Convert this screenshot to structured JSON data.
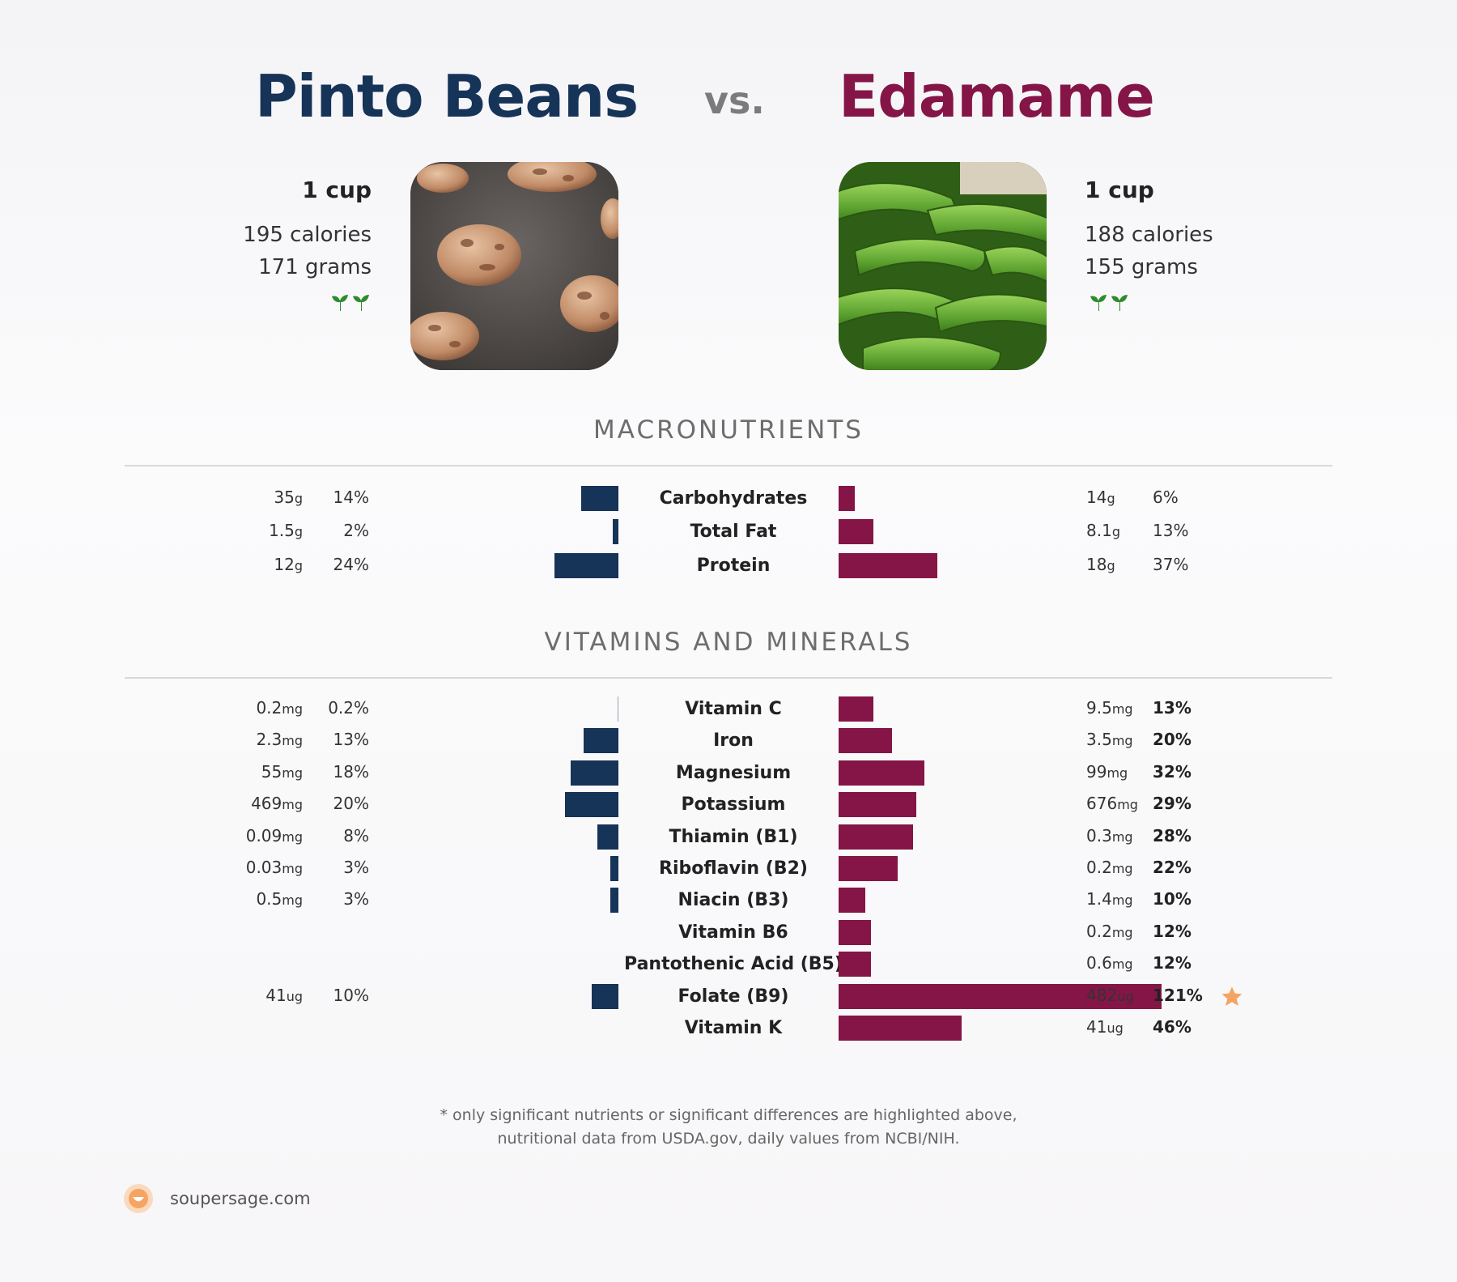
{
  "header": {
    "left_title": "Pinto Beans",
    "vs": "vs.",
    "right_title": "Edamame"
  },
  "foods": {
    "left": {
      "serving": "1 cup",
      "calories": "195 calories",
      "grams": "171 grams",
      "photo": "pinto-beans-photo",
      "badge": "plant-leaf-icon"
    },
    "right": {
      "serving": "1 cup",
      "calories": "188 calories",
      "grams": "155 grams",
      "photo": "edamame-photo",
      "badge": "plant-leaf-icon"
    }
  },
  "colors": {
    "left": "#163358",
    "right": "#851547",
    "star": "#f5a462",
    "leaf": "#2e8b2e"
  },
  "chart_data": [
    {
      "type": "bar",
      "title": "MACRONUTRIENTS",
      "categories": [
        "Carbohydrates",
        "Total Fat",
        "Protein"
      ],
      "series": [
        {
          "name": "Pinto Beans",
          "amounts": [
            "35",
            "1.5",
            "12"
          ],
          "units": [
            "g",
            "g",
            "g"
          ],
          "values": [
            14,
            2,
            24
          ],
          "labels": [
            "14%",
            "2%",
            "24%"
          ]
        },
        {
          "name": "Edamame",
          "amounts": [
            "14",
            "8.1",
            "18"
          ],
          "units": [
            "g",
            "g",
            "g"
          ],
          "values": [
            6,
            13,
            37
          ],
          "labels": [
            "6%",
            "13%",
            "37%"
          ]
        }
      ]
    },
    {
      "type": "bar",
      "title": "VITAMINS AND MINERALS",
      "categories": [
        "Vitamin C",
        "Iron",
        "Magnesium",
        "Potassium",
        "Thiamin (B1)",
        "Riboflavin (B2)",
        "Niacin (B3)",
        "Vitamin B6",
        "Pantothenic Acid (B5)",
        "Folate (B9)",
        "Vitamin K"
      ],
      "series": [
        {
          "name": "Pinto Beans",
          "amounts": [
            "0.2",
            "2.3",
            "55",
            "469",
            "0.09",
            "0.03",
            "0.5",
            null,
            null,
            "41",
            null
          ],
          "units": [
            "mg",
            "mg",
            "mg",
            "mg",
            "mg",
            "mg",
            "mg",
            null,
            null,
            "ug",
            null
          ],
          "values": [
            0.2,
            13,
            18,
            20,
            8,
            3,
            3,
            null,
            null,
            10,
            null
          ],
          "labels": [
            "0.2%",
            "13%",
            "18%",
            "20%",
            "8%",
            "3%",
            "3%",
            null,
            null,
            "10%",
            null
          ]
        },
        {
          "name": "Edamame",
          "amounts": [
            "9.5",
            "3.5",
            "99",
            "676",
            "0.3",
            "0.2",
            "1.4",
            "0.2",
            "0.6",
            "482",
            "41"
          ],
          "units": [
            "mg",
            "mg",
            "mg",
            "mg",
            "mg",
            "mg",
            "mg",
            "mg",
            "mg",
            "ug",
            "ug"
          ],
          "values": [
            13,
            20,
            32,
            29,
            28,
            22,
            10,
            12,
            12,
            121,
            46
          ],
          "labels": [
            "13%",
            "20%",
            "32%",
            "29%",
            "28%",
            "22%",
            "10%",
            "12%",
            "12%",
            "121%",
            "46%"
          ]
        }
      ],
      "highlight": {
        "category": "Folate (B9)",
        "icon": "star-icon"
      }
    }
  ],
  "footnote": {
    "line1": "* only significant nutrients or significant differences are highlighted above,",
    "line2": "nutritional data from USDA.gov, daily values from NCBI/NIH."
  },
  "brand": {
    "text": "soupersage.com",
    "icon": "soupersage-logo-icon"
  }
}
